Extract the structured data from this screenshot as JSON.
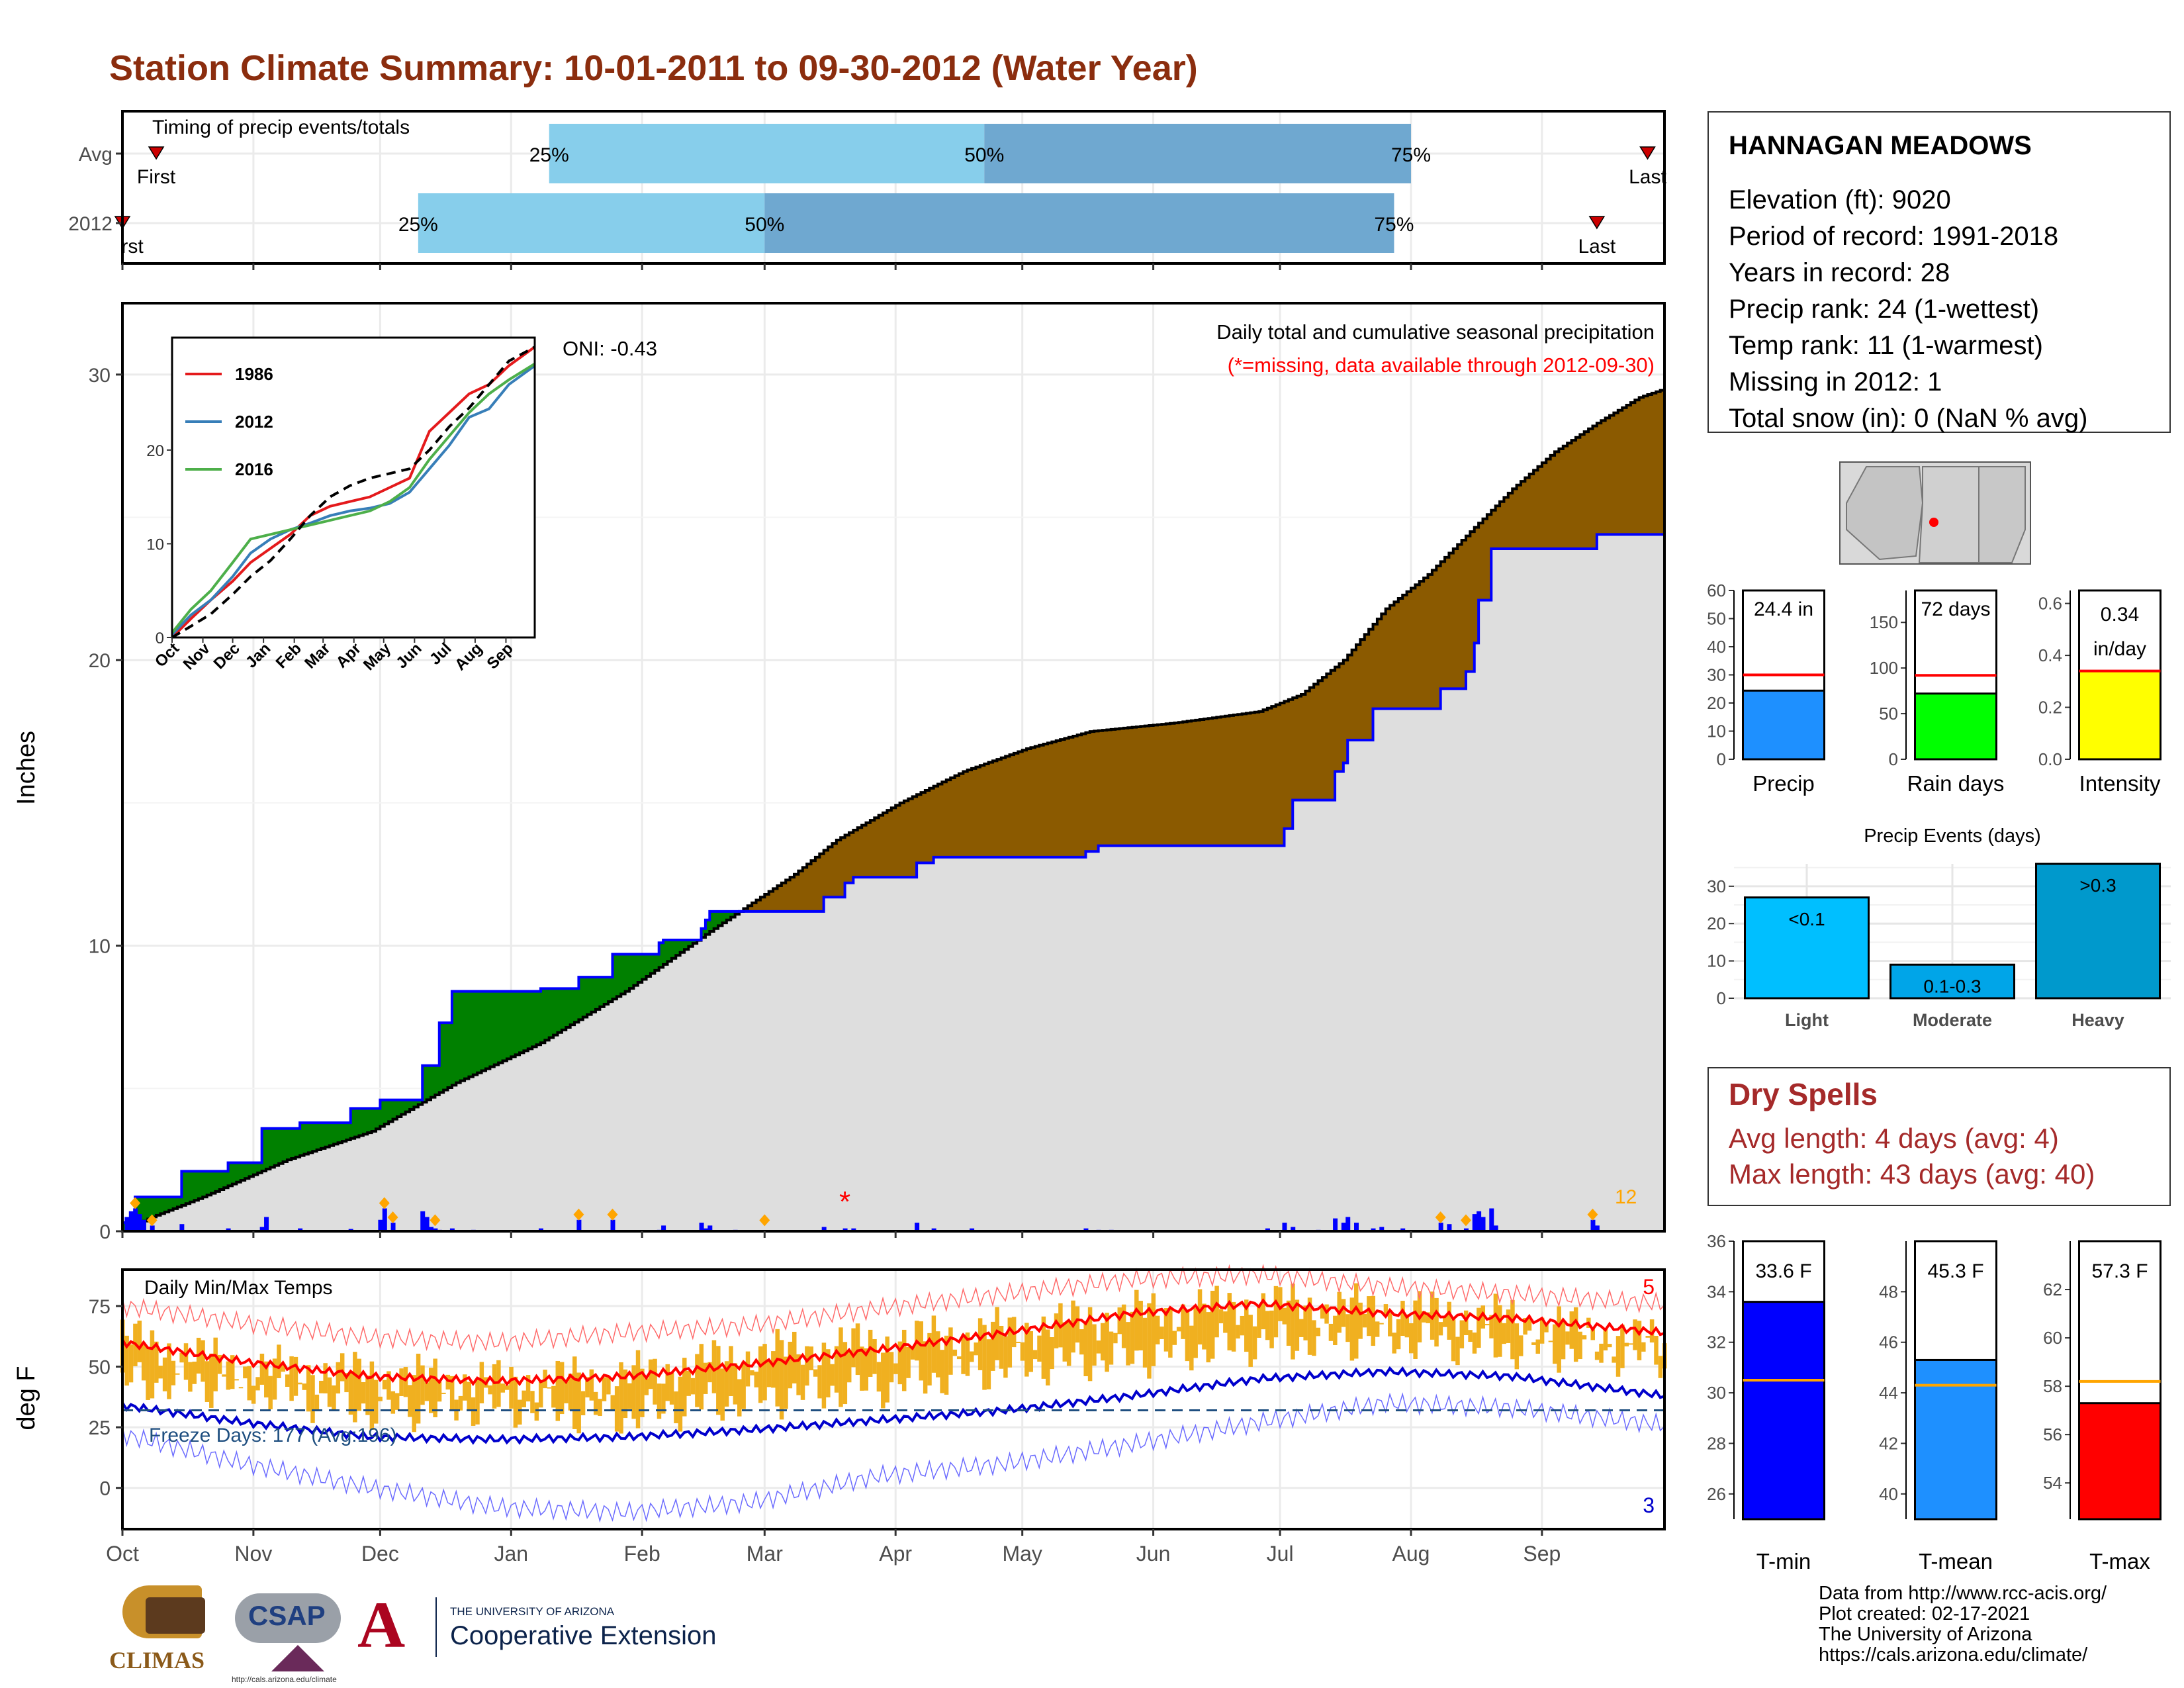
{
  "title": "Station Climate Summary: 10-01-2011 to 09-30-2012 (Water Year)",
  "station": {
    "name": "HANNAGAN MEADOWS",
    "lines": [
      "Elevation (ft): 9020",
      "Period of record: 1991-2018",
      "Years in record: 28",
      "Precip rank: 24 (1-wettest)",
      "Temp rank: 11 (1-warmest)",
      "Missing in 2012: 1",
      "Total snow (in): 0 (NaN % avg)"
    ]
  },
  "dry_spells": {
    "title": "Dry Spells",
    "avg_length": "Avg length: 4 days (avg: 4)",
    "max_length": "Max length: 43 days (avg: 40)"
  },
  "credits": [
    "Data from http://www.rcc-acis.org/",
    "Plot created: 02-17-2021",
    "The University of Arizona",
    "https://cals.arizona.edu/climate/"
  ],
  "logos": {
    "climas": "CLIMAS",
    "csap": "CSAP",
    "csap_url": "http://cals.arizona.edu/climate",
    "ua_small": "THE UNIVERSITY OF ARIZONA",
    "ua_ext": "Cooperative Extension"
  },
  "colors": {
    "title": "#8b2d0e",
    "surplus": "#008000",
    "deficit": "#8b5a00",
    "normal_fill": "#dedede",
    "obs_line": "#0000ff",
    "tmax": "#ff0000",
    "tmin": "#0000cc",
    "temp_bar": "#f0b020",
    "precip_bar": "#1e90ff",
    "raindays_bar": "#00ff00",
    "intensity_bar": "#ffff00",
    "tmean_bar": "#1e90ff",
    "tmax_bar": "#ff0000",
    "tmin_bar": "#0000ff",
    "events_light": "#00bfff",
    "events_moderate": "#00a5e8",
    "events_heavy": "#0099cc",
    "timing_light": "#87ceeb",
    "timing_dark": "#6fa8d0"
  },
  "chart_data": [
    {
      "id": "timing",
      "type": "bar",
      "title": "Timing of precip events/totals",
      "categories": [
        "Avg",
        "2012"
      ],
      "x_axis": "day of water year",
      "xlim": [
        1,
        366
      ],
      "rows": [
        {
          "label": "Avg",
          "first": 9,
          "p25": 102,
          "p50": 205,
          "p75": 306,
          "last": 362
        },
        {
          "label": "2012",
          "first": 1,
          "p25": 71,
          "p50": 153,
          "p75": 302,
          "last": 350
        }
      ],
      "quartile_labels": [
        "25%",
        "50%",
        "75%"
      ],
      "first_label": "First",
      "last_label": "Last",
      "first_label_2012": "rst"
    },
    {
      "id": "cumulative-precip",
      "type": "area",
      "title": "Daily total and cumulative seasonal precipitation",
      "subtitle": "(*=missing, data available through 2012-09-30)",
      "ylabel": "Inches",
      "ylim": [
        0,
        32.5
      ],
      "yticks": [
        0,
        10,
        20,
        30
      ],
      "xlim": [
        1,
        366
      ],
      "x_tick_days": [
        1,
        32,
        62,
        93,
        124,
        153,
        184,
        214,
        245,
        275,
        306,
        337
      ],
      "x_tick_labels": [
        "Oct",
        "Nov",
        "Dec",
        "Jan",
        "Feb",
        "Mar",
        "Apr",
        "May",
        "Jun",
        "Jul",
        "Aug",
        "Sep"
      ],
      "oni": "ONI: -0.43",
      "count_label": "12",
      "normal_cumulative": {
        "day": [
          1,
          8,
          20,
          40,
          60,
          80,
          100,
          120,
          140,
          160,
          170,
          185,
          200,
          215,
          230,
          250,
          270,
          280,
          290,
          300,
          310,
          320,
          330,
          340,
          350,
          360,
          366
        ],
        "value": [
          0,
          0.5,
          1.2,
          2.5,
          3.5,
          5.2,
          6.6,
          8.4,
          10.5,
          12.5,
          13.7,
          15,
          16.1,
          16.9,
          17.5,
          17.8,
          18.2,
          18.8,
          20,
          21.8,
          23,
          24.5,
          26,
          27.3,
          28.3,
          29.2,
          29.5
        ]
      },
      "observed_cumulative": {
        "day": [
          1,
          4,
          15,
          26,
          34,
          43,
          55,
          62,
          72,
          76,
          79,
          100,
          109,
          117,
          128,
          129,
          138,
          139,
          140,
          167,
          172,
          174,
          189,
          193,
          229,
          232,
          235,
          259,
          270,
          276,
          278,
          288,
          290,
          291,
          297,
          313,
          319,
          321,
          322,
          325,
          350,
          366
        ],
        "value": [
          0.3,
          1.2,
          2.1,
          2.4,
          3.6,
          3.8,
          4.3,
          4.6,
          5.8,
          7.3,
          8.4,
          8.5,
          8.9,
          9.7,
          10.1,
          10.2,
          10.6,
          10.9,
          11.2,
          11.7,
          12.2,
          12.4,
          12.9,
          13.1,
          13.3,
          13.5,
          13.5,
          13.5,
          13.5,
          14.1,
          15.1,
          16.1,
          16.4,
          17.2,
          18.3,
          19.0,
          19.6,
          20.6,
          22.1,
          23.9,
          24.4,
          24.4
        ]
      },
      "daily_precip": {
        "day": [
          2,
          3,
          4,
          5,
          6,
          8,
          15,
          26,
          34,
          35,
          43,
          55,
          62,
          63,
          65,
          72,
          73,
          74,
          75,
          76,
          79,
          84,
          100,
          109,
          117,
          128,
          129,
          138,
          139,
          140,
          146,
          167,
          172,
          174,
          189,
          193,
          202,
          229,
          232,
          235,
          272,
          276,
          278,
          284,
          288,
          290,
          291,
          293,
          297,
          299,
          304,
          313,
          315,
          319,
          321,
          322,
          323,
          325,
          326,
          349,
          350
        ],
        "value": [
          0.5,
          0.7,
          0.8,
          0.6,
          0.4,
          0.2,
          0.25,
          0.1,
          0.15,
          0.5,
          0.1,
          0.08,
          0.4,
          0.8,
          0.3,
          0.7,
          0.5,
          0.15,
          0.1,
          0.05,
          0.1,
          0.05,
          0.1,
          0.4,
          0.4,
          0.05,
          0.2,
          0.3,
          0.1,
          0.2,
          0.05,
          0.15,
          0.1,
          0.1,
          0.3,
          0.1,
          0.1,
          0.1,
          0.05,
          0.05,
          0.1,
          0.3,
          0.15,
          0.05,
          0.45,
          0.3,
          0.5,
          0.3,
          0.1,
          0.15,
          0.1,
          0.3,
          0.25,
          0.1,
          0.6,
          0.7,
          0.5,
          0.8,
          0.2,
          0.4,
          0.2
        ]
      },
      "record_markers_days": [
        4,
        8,
        63,
        65,
        75,
        109,
        117,
        153,
        313,
        319,
        349
      ],
      "missing_days": [
        172
      ]
    },
    {
      "id": "climatology-inset",
      "type": "line",
      "ylim": [
        0,
        32
      ],
      "yticks": [
        0,
        10,
        20
      ],
      "x_tick_labels": [
        "Oct",
        "Nov",
        "Dec",
        "Jan",
        "Feb",
        "Mar",
        "Apr",
        "May",
        "Jun",
        "Jul",
        "Aug",
        "Sep"
      ],
      "series": [
        {
          "name": "1986",
          "color": "#e41a1c",
          "x": [
            1,
            20,
            40,
            62,
            80,
            100,
            120,
            140,
            160,
            180,
            200,
            220,
            240,
            260,
            280,
            300,
            320,
            340,
            366
          ],
          "y": [
            0,
            2,
            4,
            6,
            8,
            9.5,
            11,
            13,
            14,
            14.5,
            15,
            16,
            17,
            22,
            24,
            26,
            27,
            29,
            31
          ]
        },
        {
          "name": "2012",
          "color": "#377eb8",
          "x": [
            1,
            20,
            40,
            62,
            80,
            100,
            120,
            140,
            160,
            180,
            200,
            220,
            240,
            260,
            280,
            300,
            320,
            340,
            366
          ],
          "y": [
            0.3,
            2.4,
            4,
            6.5,
            9,
            10.5,
            11.5,
            12.2,
            13,
            13.5,
            13.8,
            14.3,
            15.5,
            18,
            20.5,
            23.5,
            24.4,
            27,
            29
          ]
        },
        {
          "name": "2016",
          "color": "#4daf4a",
          "x": [
            1,
            20,
            40,
            62,
            80,
            100,
            120,
            140,
            160,
            180,
            200,
            220,
            240,
            260,
            280,
            300,
            320,
            340,
            366
          ],
          "y": [
            0.5,
            3,
            5,
            8,
            10.5,
            11,
            11.5,
            12,
            12.5,
            13,
            13.5,
            14.5,
            16,
            19,
            21.5,
            24,
            26,
            27.5,
            29.2
          ]
        },
        {
          "name": "",
          "color": "#000000",
          "dashed": true,
          "x": [
            1,
            20,
            40,
            62,
            80,
            100,
            120,
            140,
            160,
            180,
            200,
            220,
            240,
            260,
            280,
            300,
            320,
            340,
            366
          ],
          "y": [
            0,
            1.2,
            2.5,
            4.6,
            6.5,
            8.2,
            10.5,
            13,
            15,
            16.2,
            17,
            17.5,
            18,
            20,
            22.5,
            24.5,
            27,
            29.5,
            31
          ]
        }
      ]
    },
    {
      "id": "daily-temps",
      "type": "bar",
      "title": "Daily Min/Max Temps",
      "ylabel": "deg F",
      "ylim": [
        -17,
        90
      ],
      "yticks": [
        0,
        25,
        50,
        75
      ],
      "xlim": [
        1,
        366
      ],
      "x_tick_labels": [
        "Oct",
        "Nov",
        "Dec",
        "Jan",
        "Feb",
        "Mar",
        "Apr",
        "May",
        "Jun",
        "Jul",
        "Aug",
        "Sep"
      ],
      "freeze_days": "Freeze Days: 177 (Avg:196)",
      "freeze_line": 32,
      "record_high_count": "5",
      "record_low_count": "3",
      "normal_tmax": {
        "day": [
          1,
          30,
          60,
          90,
          120,
          150,
          180,
          210,
          240,
          270,
          300,
          330,
          366
        ],
        "value": [
          60,
          52,
          46,
          44,
          46,
          51,
          57,
          64,
          72,
          76,
          72,
          70,
          64
        ]
      },
      "normal_tmin": {
        "day": [
          1,
          30,
          60,
          90,
          120,
          150,
          180,
          210,
          240,
          270,
          300,
          330,
          366
        ],
        "value": [
          34,
          27,
          21,
          20,
          21,
          24,
          28,
          32,
          38,
          45,
          48,
          46,
          38
        ]
      },
      "record_tmax": {
        "day": [
          1,
          30,
          60,
          90,
          120,
          150,
          180,
          210,
          240,
          270,
          300,
          330,
          366
        ],
        "value": [
          75,
          68,
          62,
          60,
          64,
          67,
          74,
          80,
          86,
          88,
          83,
          80,
          76
        ]
      },
      "record_tmin": {
        "day": [
          1,
          30,
          60,
          90,
          120,
          150,
          180,
          210,
          240,
          270,
          300,
          330,
          366
        ],
        "value": [
          22,
          10,
          0,
          -8,
          -10,
          -6,
          5,
          10,
          18,
          27,
          35,
          33,
          26
        ]
      },
      "obs_tmax": {
        "day": [
          1,
          30,
          60,
          90,
          120,
          150,
          180,
          210,
          240,
          270,
          300,
          330,
          366
        ],
        "value": [
          62,
          50,
          47,
          44,
          46,
          55,
          60,
          65,
          72,
          76,
          74,
          70,
          60
        ]
      },
      "obs_tmin": {
        "day": [
          1,
          30,
          60,
          90,
          120,
          150,
          180,
          210,
          240,
          270,
          300,
          330,
          366
        ],
        "value": [
          32,
          30,
          20,
          22,
          18,
          25,
          30,
          38,
          42,
          48,
          50,
          46,
          42
        ]
      }
    },
    {
      "id": "season-precip",
      "type": "bar",
      "categories": [
        "Precip"
      ],
      "values": [
        24.4
      ],
      "normal": 30,
      "ylim": [
        0,
        60
      ],
      "yticks": [
        0,
        10,
        20,
        30,
        40,
        50,
        60
      ],
      "label": "24.4 in"
    },
    {
      "id": "season-raindays",
      "type": "bar",
      "categories": [
        "Rain days"
      ],
      "values": [
        72
      ],
      "normal": 92,
      "ylim": [
        0,
        185
      ],
      "yticks": [
        0,
        50,
        100,
        150
      ],
      "label": "72 days"
    },
    {
      "id": "season-intensity",
      "type": "bar",
      "categories": [
        "Intensity"
      ],
      "values": [
        0.34
      ],
      "normal": 0.34,
      "ylim": [
        0,
        0.65
      ],
      "yticks": [
        "0.0",
        "0.2",
        "0.4",
        "0.6"
      ],
      "label": "0.34",
      "label2": "in/day"
    },
    {
      "id": "precip-events",
      "type": "bar",
      "title": "Precip Events (days)",
      "categories": [
        "Light",
        "Moderate",
        "Heavy"
      ],
      "values": [
        27,
        9,
        36
      ],
      "bar_labels": [
        "<0.1",
        "0.1-0.3",
        ">0.3"
      ],
      "ylim": [
        0,
        36
      ],
      "yticks": [
        0,
        10,
        20,
        30
      ]
    },
    {
      "id": "season-tmin",
      "type": "bar",
      "categories": [
        "T-min"
      ],
      "values": [
        33.6
      ],
      "normal": 30.5,
      "ylim": [
        25,
        36
      ],
      "yticks": [
        26,
        28,
        30,
        32,
        34,
        36
      ],
      "label": "33.6 F"
    },
    {
      "id": "season-tmean",
      "type": "bar",
      "categories": [
        "T-mean"
      ],
      "values": [
        45.3
      ],
      "normal": 44.3,
      "ylim": [
        39,
        50
      ],
      "yticks": [
        40,
        42,
        44,
        46,
        48
      ],
      "label": "45.3 F"
    },
    {
      "id": "season-tmax",
      "type": "bar",
      "categories": [
        "T-max"
      ],
      "values": [
        57.3
      ],
      "normal": 58.2,
      "ylim": [
        52.5,
        64
      ],
      "yticks": [
        54,
        56,
        58,
        60,
        62
      ],
      "label": "57.3 F"
    }
  ]
}
